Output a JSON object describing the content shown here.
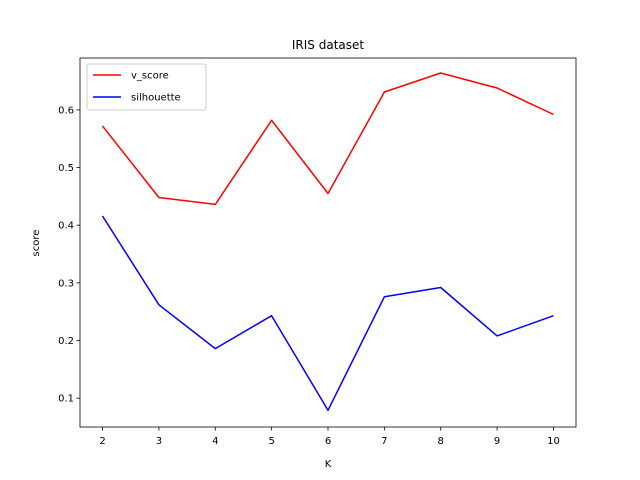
{
  "chart_data": {
    "type": "line",
    "title": "IRIS dataset",
    "xlabel": "K",
    "ylabel": "score",
    "x": [
      2,
      3,
      4,
      5,
      6,
      7,
      8,
      9,
      10
    ],
    "xlim": [
      1.6,
      10.4
    ],
    "ylim": [
      0.05,
      0.69
    ],
    "xticks": [
      2,
      3,
      4,
      5,
      6,
      7,
      8,
      9,
      10
    ],
    "yticks": [
      0.1,
      0.2,
      0.3,
      0.4,
      0.5,
      0.6
    ],
    "ytick_labels": [
      "0.1",
      "0.2",
      "0.3",
      "0.4",
      "0.5",
      "0.6"
    ],
    "grid": false,
    "legend_position": "upper-left",
    "series": [
      {
        "name": "v_score",
        "color": "#ff0000",
        "values": [
          0.572,
          0.448,
          0.436,
          0.582,
          0.455,
          0.631,
          0.664,
          0.638,
          0.592
        ]
      },
      {
        "name": "silhouette",
        "color": "#0000ff",
        "values": [
          0.416,
          0.262,
          0.186,
          0.243,
          0.079,
          0.276,
          0.292,
          0.208,
          0.243
        ]
      }
    ]
  }
}
